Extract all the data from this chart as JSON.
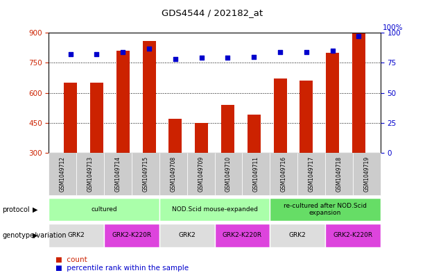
{
  "title": "GDS4544 / 202182_at",
  "samples": [
    "GSM1049712",
    "GSM1049713",
    "GSM1049714",
    "GSM1049715",
    "GSM1049708",
    "GSM1049709",
    "GSM1049710",
    "GSM1049711",
    "GSM1049716",
    "GSM1049717",
    "GSM1049718",
    "GSM1049719"
  ],
  "counts": [
    650,
    650,
    810,
    860,
    470,
    450,
    540,
    490,
    670,
    660,
    800,
    900
  ],
  "percentiles": [
    82,
    82,
    84,
    87,
    78,
    79,
    79,
    80,
    84,
    84,
    85,
    97
  ],
  "ylim_left": [
    300,
    900
  ],
  "ylim_right": [
    0,
    100
  ],
  "yticks_left": [
    300,
    450,
    600,
    750,
    900
  ],
  "yticks_right": [
    0,
    25,
    50,
    75,
    100
  ],
  "bar_color": "#CC2200",
  "dot_color": "#0000CC",
  "protocol_groups": [
    {
      "label": "cultured",
      "start": 0,
      "end": 4,
      "color": "#AAFFAA"
    },
    {
      "label": "NOD.Scid mouse-expanded",
      "start": 4,
      "end": 8,
      "color": "#AAFFAA"
    },
    {
      "label": "re-cultured after NOD.Scid\nexpansion",
      "start": 8,
      "end": 12,
      "color": "#66DD66"
    }
  ],
  "genotype_groups": [
    {
      "label": "GRK2",
      "start": 0,
      "end": 2,
      "color": "#DDDDDD"
    },
    {
      "label": "GRK2-K220R",
      "start": 2,
      "end": 4,
      "color": "#DD44DD"
    },
    {
      "label": "GRK2",
      "start": 4,
      "end": 6,
      "color": "#DDDDDD"
    },
    {
      "label": "GRK2-K220R",
      "start": 6,
      "end": 8,
      "color": "#DD44DD"
    },
    {
      "label": "GRK2",
      "start": 8,
      "end": 10,
      "color": "#DDDDDD"
    },
    {
      "label": "GRK2-K220R",
      "start": 10,
      "end": 12,
      "color": "#DD44DD"
    }
  ],
  "protocol_label": "protocol",
  "genotype_label": "genotype/variation",
  "legend_count_label": "count",
  "legend_pct_label": "percentile rank within the sample",
  "bg_color": "#FFFFFF",
  "grid_color": "#000000",
  "left_axis_color": "#CC2200",
  "right_axis_color": "#0000CC",
  "sample_row_color": "#CCCCCC"
}
